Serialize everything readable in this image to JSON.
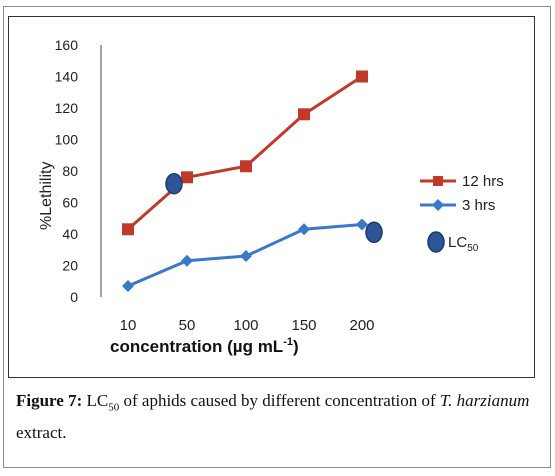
{
  "chart_data": {
    "type": "line",
    "categories": [
      "10",
      "50",
      "100",
      "150",
      "200"
    ],
    "ylabel": "%Lethility",
    "xlabel_prefix": "concentration (µg mL",
    "xlabel_sup": "-1",
    "xlabel_suffix": ")",
    "ylim": [
      0,
      160
    ],
    "yticks": [
      "0",
      "20",
      "40",
      "60",
      "80",
      "100",
      "120",
      "140",
      "160"
    ],
    "series": [
      {
        "name": "12 hrs",
        "color": "#c0392b",
        "marker": "square",
        "values": [
          43,
          76,
          83,
          116,
          140
        ]
      },
      {
        "name": "3 hrs",
        "color": "#3a78c9",
        "marker": "diamond",
        "values": [
          7,
          23,
          26,
          43,
          46
        ]
      }
    ],
    "lc50_label": "LC",
    "lc50_sub": "50",
    "lc50_points": [
      {
        "x_between": [
          0,
          1
        ],
        "y": 70
      },
      {
        "x_after": 4,
        "y": 43
      }
    ],
    "lc50_color": "#2e5597",
    "legend_position": "right"
  },
  "caption": {
    "label": "Figure 7:",
    "text_part1": " LC",
    "text_sub": "50",
    "text_part2": " of aphids caused by different concentration of ",
    "species": "T. harzianum",
    "text_part3": " extract."
  }
}
